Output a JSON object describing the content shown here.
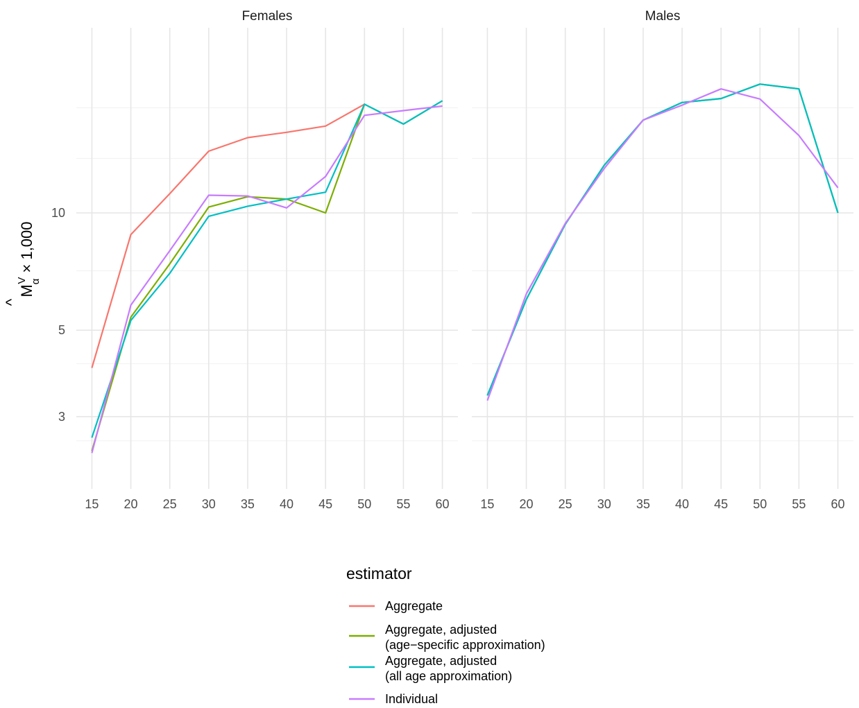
{
  "chart_data": {
    "type": "line",
    "ylabel": {
      "main": "M",
      "hat": "^",
      "sup": "V",
      "sub": "α",
      "rest": "× 1,000"
    },
    "y_scale": "log",
    "ylim": [
      2.5,
      22
    ],
    "y_ticks": [
      3,
      5,
      10
    ],
    "x_ticks": [
      15,
      20,
      25,
      30,
      35,
      40,
      45,
      50,
      55,
      60
    ],
    "xlim": [
      13,
      62
    ],
    "grid": true,
    "legend": {
      "title": "estimator",
      "position": "bottom",
      "entries": [
        {
          "key": "agg",
          "lines": [
            "Aggregate"
          ],
          "color": "#F8766D"
        },
        {
          "key": "age",
          "lines": [
            "Aggregate, adjusted",
            "(age−specific approximation)"
          ],
          "color": "#7CAE00"
        },
        {
          "key": "all",
          "lines": [
            "Aggregate, adjusted",
            "(all age approximation)"
          ],
          "color": "#00BFC4"
        },
        {
          "key": "ind",
          "lines": [
            "Individual"
          ],
          "color": "#C77CFF"
        }
      ]
    },
    "panels": [
      {
        "title": "Females",
        "series": [
          {
            "key": "agg",
            "x": [
              15,
              20,
              25,
              30,
              35,
              40,
              45,
              50
            ],
            "y": [
              4.0,
              8.8,
              11.2,
              14.4,
              15.6,
              16.1,
              16.7,
              19.0
            ]
          },
          {
            "key": "age",
            "x": [
              15,
              20,
              25,
              30,
              35,
              40,
              45,
              50,
              55,
              60
            ],
            "y": [
              2.45,
              5.4,
              7.4,
              10.35,
              11.0,
              10.85,
              10.0,
              19.0,
              16.9,
              19.4
            ]
          },
          {
            "key": "all",
            "x": [
              15,
              20,
              25,
              30,
              35,
              40,
              45,
              50,
              55,
              60
            ],
            "y": [
              2.65,
              5.3,
              7.0,
              9.8,
              10.4,
              10.85,
              11.3,
              19.0,
              16.9,
              19.4
            ]
          },
          {
            "key": "ind",
            "x": [
              15,
              20,
              25,
              30,
              35,
              40,
              45,
              50,
              55,
              60
            ],
            "y": [
              2.42,
              5.8,
              8.0,
              11.1,
              11.05,
              10.3,
              12.4,
              17.8,
              18.3,
              18.8
            ]
          }
        ]
      },
      {
        "title": "Males",
        "series": [
          {
            "key": "age",
            "x": [
              15,
              20,
              25,
              30,
              35,
              40,
              45,
              50,
              55,
              60
            ],
            "y": [
              3.4,
              6.0,
              9.35,
              13.25,
              17.3,
              19.2,
              19.65,
              21.4,
              20.8,
              10.0
            ]
          },
          {
            "key": "all",
            "x": [
              15,
              20,
              25,
              30,
              35,
              40,
              45,
              50,
              55,
              60
            ],
            "y": [
              3.4,
              6.0,
              9.35,
              13.25,
              17.3,
              19.2,
              19.65,
              21.4,
              20.8,
              10.0
            ]
          },
          {
            "key": "ind",
            "x": [
              15,
              20,
              25,
              30,
              35,
              40,
              45,
              50,
              55,
              60
            ],
            "y": [
              3.3,
              6.2,
              9.4,
              13.0,
              17.3,
              18.9,
              20.8,
              19.6,
              15.8,
              11.6
            ]
          }
        ]
      }
    ]
  }
}
